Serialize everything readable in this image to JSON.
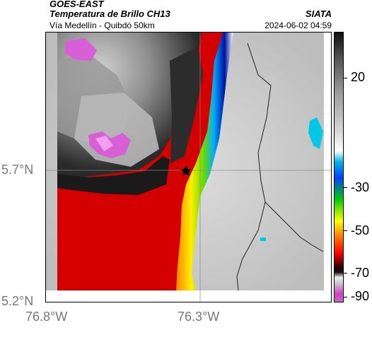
{
  "header": {
    "satellite": "GOES-EAST",
    "product": "Temperatura de Brillo CH13",
    "region": "Vía Medellín - Quibdó 50km",
    "brand": "SIATA",
    "datetime": "2024-06-02 04:59"
  },
  "map": {
    "y_ticks": [
      "5.7°N",
      "5.2°N"
    ],
    "x_ticks": [
      "76.8°W",
      "76.3°W"
    ],
    "marker": "star-marker"
  },
  "colorbar": {
    "labels": [
      "20",
      "-30",
      "-50",
      "-70",
      "-90"
    ],
    "colors": [
      "#111111",
      "#ffffff",
      "#00a0c8",
      "#0000ff",
      "#00cc00",
      "#ffff00",
      "#ff0000",
      "#000000",
      "#cc44cc"
    ]
  }
}
